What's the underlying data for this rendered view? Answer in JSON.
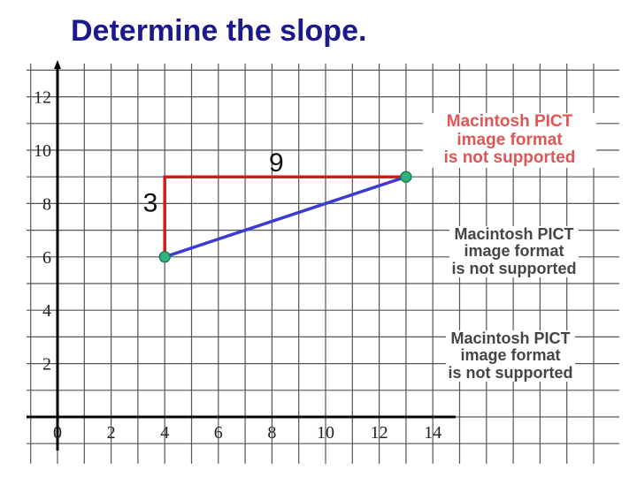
{
  "title": "Determine the slope.",
  "chart_data": {
    "type": "line",
    "title": "Determine the slope.",
    "xlabel": "",
    "ylabel": "",
    "xlim": [
      0,
      14
    ],
    "ylim": [
      0,
      12
    ],
    "x_ticks": [
      "0",
      "2",
      "4",
      "6",
      "8",
      "10",
      "12",
      "14"
    ],
    "y_ticks": [
      "2",
      "4",
      "6",
      "8",
      "10",
      "12"
    ],
    "grid": true,
    "series": [
      {
        "x": [
          4,
          13
        ],
        "y": [
          6,
          9
        ],
        "color": "#3b3bd0"
      }
    ],
    "points": [
      {
        "x": 4,
        "y": 6,
        "color": "#2fb37a"
      },
      {
        "x": 13,
        "y": 9,
        "color": "#2fb37a"
      }
    ],
    "rise_run": {
      "from": [
        4,
        6
      ],
      "corner": [
        4,
        9
      ],
      "to": [
        13,
        9
      ],
      "color": "#cc1f1f"
    },
    "annotations": [
      {
        "text": "9",
        "x": 8,
        "y": 9,
        "label": "run"
      },
      {
        "text": "3",
        "x": 3.3,
        "y": 7.5,
        "label": "rise"
      }
    ]
  },
  "placeholders": [
    {
      "lines": [
        "Macintosh PICT",
        "image format",
        "is not supported"
      ],
      "style": "red"
    },
    {
      "lines": [
        "Macintosh PICT",
        "image format",
        "is not supported"
      ],
      "style": "dark"
    },
    {
      "lines": [
        "Macintosh PICT",
        "image format",
        "is not supported"
      ],
      "style": "dark"
    }
  ],
  "colors": {
    "title": "#1a1a8c",
    "grid": "#555555",
    "axis": "#000000"
  }
}
